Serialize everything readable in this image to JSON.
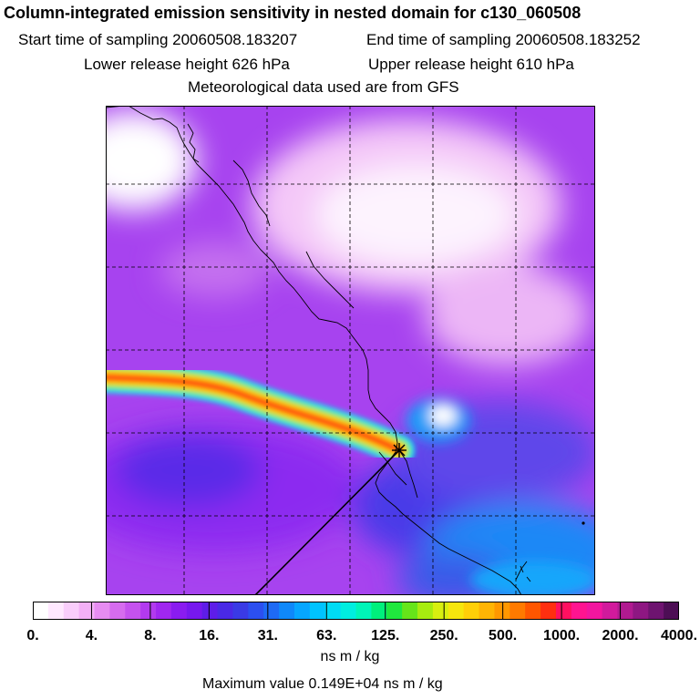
{
  "header": {
    "title": "Column-integrated emission sensitivity in nested domain for c130_060508",
    "start": "Start time of sampling 20060508.183207",
    "end": "End time of sampling 20060508.183252",
    "lower": "Lower release height  626 hPa",
    "upper": "Upper release height  610 hPa",
    "met": "Meteorological data used are from GFS"
  },
  "legend": {
    "ticks": [
      "0.",
      "4.",
      "8.",
      "16.",
      "31.",
      "63.",
      "125.",
      "250.",
      "500.",
      "1000.",
      "2000.",
      "4000."
    ],
    "colors": [
      "#ffffff",
      "#ffe8ff",
      "#f9cdfb",
      "#f3b0f6",
      "#e68cf1",
      "#d66cee",
      "#c552ee",
      "#b23aef",
      "#a027f0",
      "#8a1cf0",
      "#7718ee",
      "#5e1de8",
      "#4a29e6",
      "#3a3ae5",
      "#2c4ff0",
      "#1e6af5",
      "#0f88fa",
      "#06a6ff",
      "#00c3ff",
      "#00dcf5",
      "#00eee0",
      "#00f5b8",
      "#00f07c",
      "#20e83e",
      "#66e51a",
      "#a7ec10",
      "#d8ef10",
      "#f6e60d",
      "#ffcf08",
      "#ffb404",
      "#ff9800",
      "#ff7a00",
      "#ff5600",
      "#ff2f10",
      "#ff1060",
      "#ff1490",
      "#f2169f",
      "#d11a9c",
      "#b01a90",
      "#8e1782",
      "#6e1470",
      "#4d0e55"
    ],
    "units": "ns m / kg",
    "max_value": "Maximum value  0.149E+04 ns m / kg"
  },
  "map": {
    "background_color": "#a743ef",
    "plume_colors": [
      "#00e6f0",
      "#6ee65a",
      "#ffe000",
      "#ff7a00",
      "#ff3218"
    ],
    "release_marker": "star-icon"
  }
}
